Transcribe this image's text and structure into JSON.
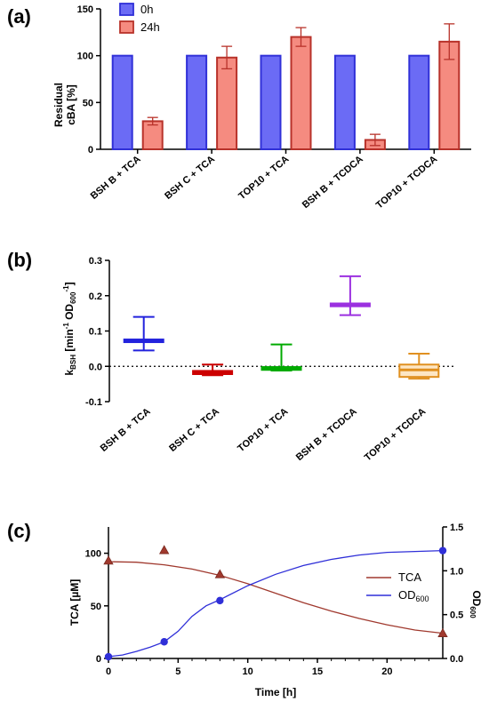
{
  "chart_data": [
    {
      "type": "bar",
      "panel_label": "(a)",
      "ylabel_lines": [
        "Residual",
        "cBA [%]"
      ],
      "categories": [
        "BSH B + TCA",
        "BSH C + TCA",
        "TOP10 + TCA",
        "BSH B + TCDCA",
        "TOP10 + TCDCA"
      ],
      "ylim": [
        0,
        150
      ],
      "yticks": [
        "0",
        "50",
        "100",
        "150"
      ],
      "legend_position": "top-left",
      "series": [
        {
          "name": "0h",
          "color": "#6b6bf5",
          "edge": "#3030d8",
          "values": [
            100,
            100,
            100,
            100,
            100
          ],
          "errors": [
            0,
            0,
            0,
            0,
            0
          ]
        },
        {
          "name": "24h",
          "color": "#f58b80",
          "edge": "#b8322a",
          "values": [
            30,
            98,
            120,
            10,
            115
          ],
          "errors": [
            4,
            12,
            10,
            6,
            19
          ]
        }
      ]
    },
    {
      "type": "box",
      "panel_label": "(b)",
      "ylabel_main": "k",
      "ylabel_sub": "BSH",
      "ylabel_tail": " [min",
      "ylabel_sup": "-1",
      "ylabel_tail2": " OD",
      "ylabel_sub2": "600",
      "ylabel_sup2": "-1",
      "ylabel_end": "]",
      "categories": [
        "BSH B + TCA",
        "BSH C + TCA",
        "TOP10 + TCA",
        "BSH B + TCDCA",
        "TOP10 + TCDCA"
      ],
      "ylim": [
        -0.1,
        0.3
      ],
      "yticks": [
        "-0.1",
        "0.0",
        "0.1",
        "0.2",
        "0.3"
      ],
      "reference_line": 0,
      "boxes": [
        {
          "min": 0.045,
          "q1": 0.07,
          "median": 0.073,
          "q3": 0.076,
          "max": 0.14,
          "color": "#2222dd",
          "fill": "#ffffff"
        },
        {
          "min": -0.025,
          "q1": -0.022,
          "median": -0.018,
          "q3": -0.013,
          "max": 0.005,
          "color": "#cc0000",
          "fill": "#f5c0c0"
        },
        {
          "min": -0.012,
          "q1": -0.01,
          "median": -0.006,
          "q3": -0.002,
          "max": 0.062,
          "color": "#00aa00",
          "fill": "#c8f0c8"
        },
        {
          "min": 0.145,
          "q1": 0.17,
          "median": 0.174,
          "q3": 0.178,
          "max": 0.255,
          "color": "#9b30e0",
          "fill": "#ffffff"
        },
        {
          "min": -0.035,
          "q1": -0.03,
          "median": -0.01,
          "q3": 0.005,
          "max": 0.036,
          "color": "#e09020",
          "fill": "#fde6c4"
        }
      ]
    },
    {
      "type": "line",
      "panel_label": "(c)",
      "xlabel": "Time [h]",
      "ylabel_left": "TCA [µM]",
      "ylabel_right_main": "OD",
      "ylabel_right_sub": "600",
      "xlim": [
        0,
        24
      ],
      "xticks": [
        "0",
        "5",
        "10",
        "15",
        "20"
      ],
      "ylim_left": [
        0,
        125
      ],
      "yticks_left": [
        "0",
        "50",
        "100"
      ],
      "ylim_right": [
        0,
        1.5
      ],
      "yticks_right": [
        "0.0",
        "0.5",
        "1.0",
        "1.5"
      ],
      "legend_position": "right",
      "series": [
        {
          "name": "TCA",
          "axis": "left",
          "color": "#a0392e",
          "marker": "triangle",
          "x": [
            0,
            4,
            8,
            24
          ],
          "y": [
            93,
            103,
            80,
            24
          ],
          "fit_x": [
            0,
            2,
            4,
            6,
            8,
            10,
            12,
            14,
            16,
            18,
            20,
            22,
            24
          ],
          "fit_y": [
            92,
            91.5,
            89,
            85,
            79,
            71,
            62,
            53,
            45,
            38,
            32,
            27,
            24
          ]
        },
        {
          "name": "OD",
          "name_sub": "600",
          "axis": "right",
          "color": "#2f2fd8",
          "marker": "circle",
          "x": [
            0,
            4,
            8,
            24
          ],
          "y": [
            0.02,
            0.19,
            0.66,
            1.23
          ],
          "fit_x": [
            0,
            1,
            2,
            3,
            4,
            5,
            6,
            7,
            8,
            10,
            12,
            14,
            16,
            18,
            20,
            22,
            24
          ],
          "fit_y": [
            0.02,
            0.04,
            0.08,
            0.13,
            0.19,
            0.31,
            0.48,
            0.6,
            0.67,
            0.83,
            0.96,
            1.06,
            1.13,
            1.18,
            1.21,
            1.22,
            1.23
          ]
        }
      ]
    }
  ]
}
